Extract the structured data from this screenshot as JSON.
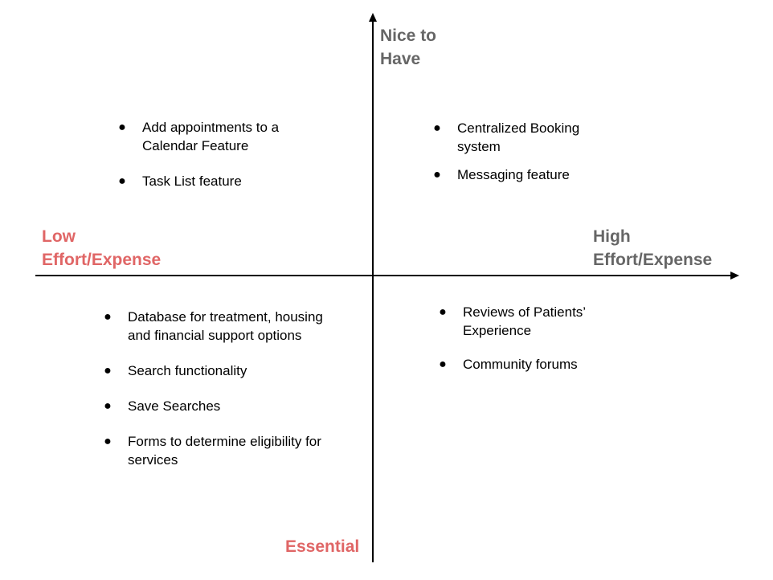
{
  "axes": {
    "top": "Nice to Have",
    "bottom": "Essential",
    "left": "Low Effort/Expense",
    "right": "High Effort/Expense"
  },
  "colors": {
    "accent": "#e06666",
    "muted": "#666666",
    "axis": "#000000"
  },
  "quadrants": {
    "top_left": [
      "Add appointments to a Calendar Feature",
      "Task List feature"
    ],
    "top_right": [
      "Centralized Booking system",
      "Messaging feature"
    ],
    "bottom_left": [
      "Database for treatment, housing and financial support options",
      "Search functionality",
      "Save Searches",
      "Forms to determine eligibility for services"
    ],
    "bottom_right": [
      "Reviews of Patients’ Experience",
      "Community forums"
    ]
  }
}
